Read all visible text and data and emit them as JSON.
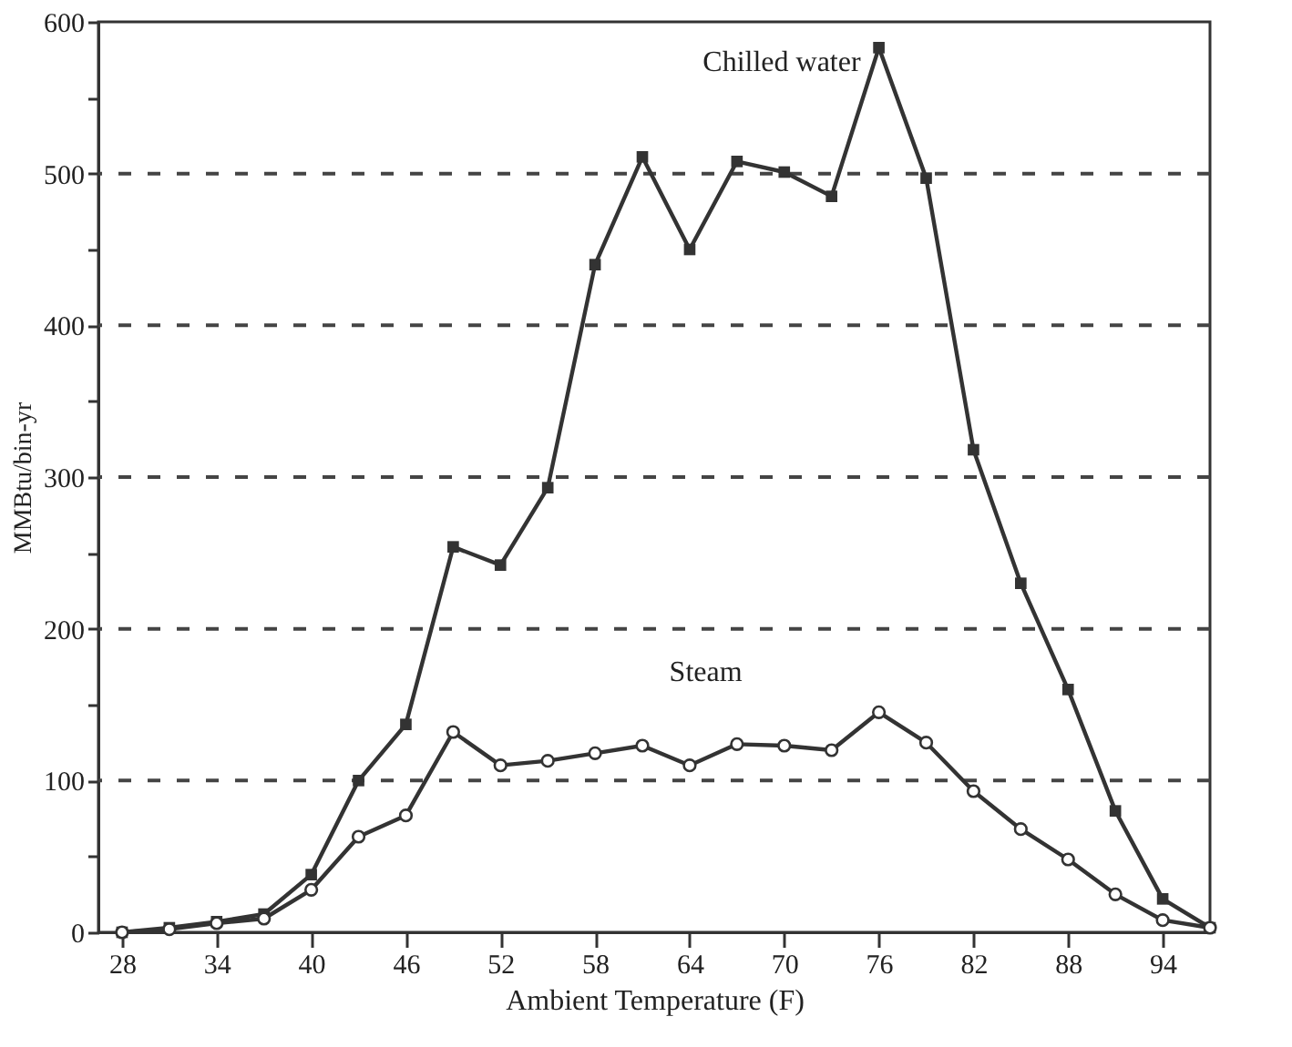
{
  "chart_data": {
    "type": "line",
    "xlabel": "Ambient Temperature (F)",
    "ylabel": "MMBtu/bin-yr",
    "x": [
      28,
      31,
      34,
      37,
      40,
      43,
      46,
      49,
      52,
      55,
      58,
      61,
      64,
      67,
      70,
      73,
      76,
      79,
      82,
      85,
      88,
      91,
      94,
      97
    ],
    "series": [
      {
        "name": "Chilled water",
        "color": "#333333",
        "marker": "square",
        "values": [
          0,
          3,
          7,
          12,
          38,
          100,
          137,
          254,
          242,
          293,
          440,
          511,
          450,
          508,
          501,
          485,
          583,
          497,
          318,
          230,
          160,
          80,
          22,
          3
        ]
      },
      {
        "name": "Steam",
        "color": "#333333",
        "marker": "circle",
        "values": [
          0,
          2,
          6,
          9,
          28,
          63,
          77,
          132,
          110,
          113,
          118,
          123,
          110,
          124,
          123,
          120,
          145,
          125,
          93,
          68,
          48,
          25,
          8,
          3
        ]
      }
    ],
    "xlim": [
      26.5,
      97
    ],
    "xticks": [
      28,
      34,
      40,
      46,
      52,
      58,
      64,
      70,
      76,
      82,
      88,
      94
    ],
    "ylim": [
      0,
      600
    ],
    "yticks": [
      0,
      {
        "value": 50,
        "label": null
      },
      100,
      {
        "value": 150,
        "label": null
      },
      200,
      {
        "value": 250,
        "label": null
      },
      300,
      {
        "value": 350,
        "label": null
      },
      400,
      {
        "value": 450,
        "label": null
      },
      500,
      {
        "value": 550,
        "label": null
      },
      600
    ],
    "grid": "y"
  }
}
